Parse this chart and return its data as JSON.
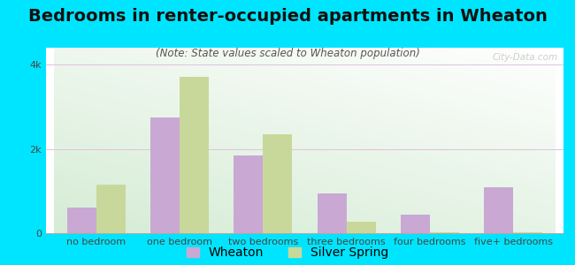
{
  "title": "Bedrooms in renter-occupied apartments in Wheaton",
  "subtitle": "(Note: State values scaled to Wheaton population)",
  "categories": [
    "no bedroom",
    "one bedroom",
    "two bedrooms",
    "three bedrooms",
    "four bedrooms",
    "five+ bedrooms"
  ],
  "wheaton_values": [
    600,
    2750,
    1850,
    950,
    450,
    1100
  ],
  "silver_spring_values": [
    1150,
    3700,
    2350,
    280,
    30,
    20
  ],
  "wheaton_color": "#c9a8d4",
  "silver_spring_color": "#c8d89a",
  "background_color": "#00e5ff",
  "yticks": [
    0,
    2000,
    4000
  ],
  "ytick_labels": [
    "0",
    "2k",
    "4k"
  ],
  "ylim": [
    0,
    4400
  ],
  "bar_width": 0.35,
  "title_fontsize": 14,
  "subtitle_fontsize": 8.5,
  "axis_label_fontsize": 8,
  "legend_fontsize": 10
}
